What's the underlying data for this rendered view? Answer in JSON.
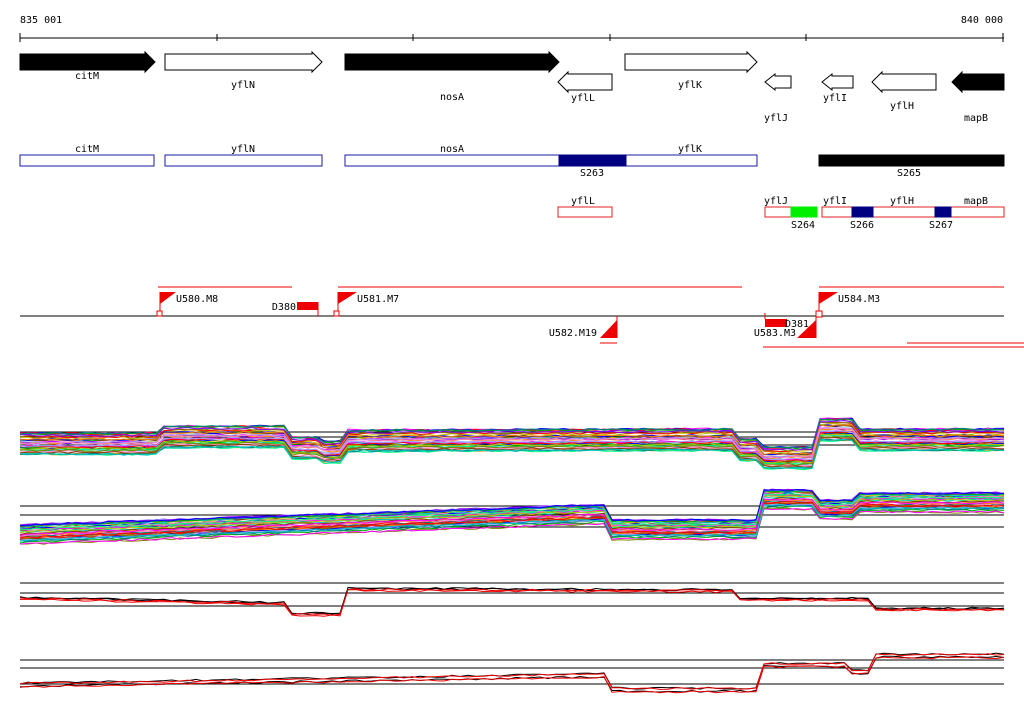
{
  "ruler": {
    "start_label": "835 001",
    "end_label": "840 000"
  },
  "genes": [
    {
      "label": "citM",
      "strand": "+",
      "filled": true
    },
    {
      "label": "yflN",
      "strand": "+",
      "filled": false
    },
    {
      "label": "nosA",
      "strand": "+",
      "filled": true
    },
    {
      "label": "yflL",
      "strand": "-",
      "filled": false
    },
    {
      "label": "yflK",
      "strand": "+",
      "filled": false
    },
    {
      "label": "yflJ",
      "strand": "-",
      "filled": false
    },
    {
      "label": "yflI",
      "strand": "-",
      "filled": false
    },
    {
      "label": "yflH",
      "strand": "-",
      "filled": false
    },
    {
      "label": "mapB",
      "strand": "-",
      "filled": true
    }
  ],
  "operons_plus": [
    {
      "label": "citM"
    },
    {
      "label": "yflN"
    },
    {
      "label": "nosA"
    },
    {
      "label": "yflK"
    }
  ],
  "operons_minus": [
    {
      "label": "yflL"
    },
    {
      "label": "yflJ"
    },
    {
      "label": "yflI"
    },
    {
      "label": "yflH"
    },
    {
      "label": "mapB"
    }
  ],
  "segments": [
    {
      "label": "S263",
      "color": "#000080"
    },
    {
      "label": "S265",
      "color": "#000000"
    },
    {
      "label": "S264",
      "color": "#00ee00"
    },
    {
      "label": "S266",
      "color": "#000080"
    },
    {
      "label": "S267",
      "color": "#000080"
    }
  ],
  "upshifts": [
    {
      "label": "U580.M8"
    },
    {
      "label": "U581.M7"
    },
    {
      "label": "U582.M19"
    },
    {
      "label": "U583.M3"
    },
    {
      "label": "U584.M3"
    }
  ],
  "downshifts": [
    {
      "label": "D380"
    },
    {
      "label": "D381"
    }
  ],
  "colors": {
    "operon_plus": "#1a1aa6",
    "operon_minus": "#e02020",
    "shift": "#ee0000",
    "gene": "#000000"
  }
}
